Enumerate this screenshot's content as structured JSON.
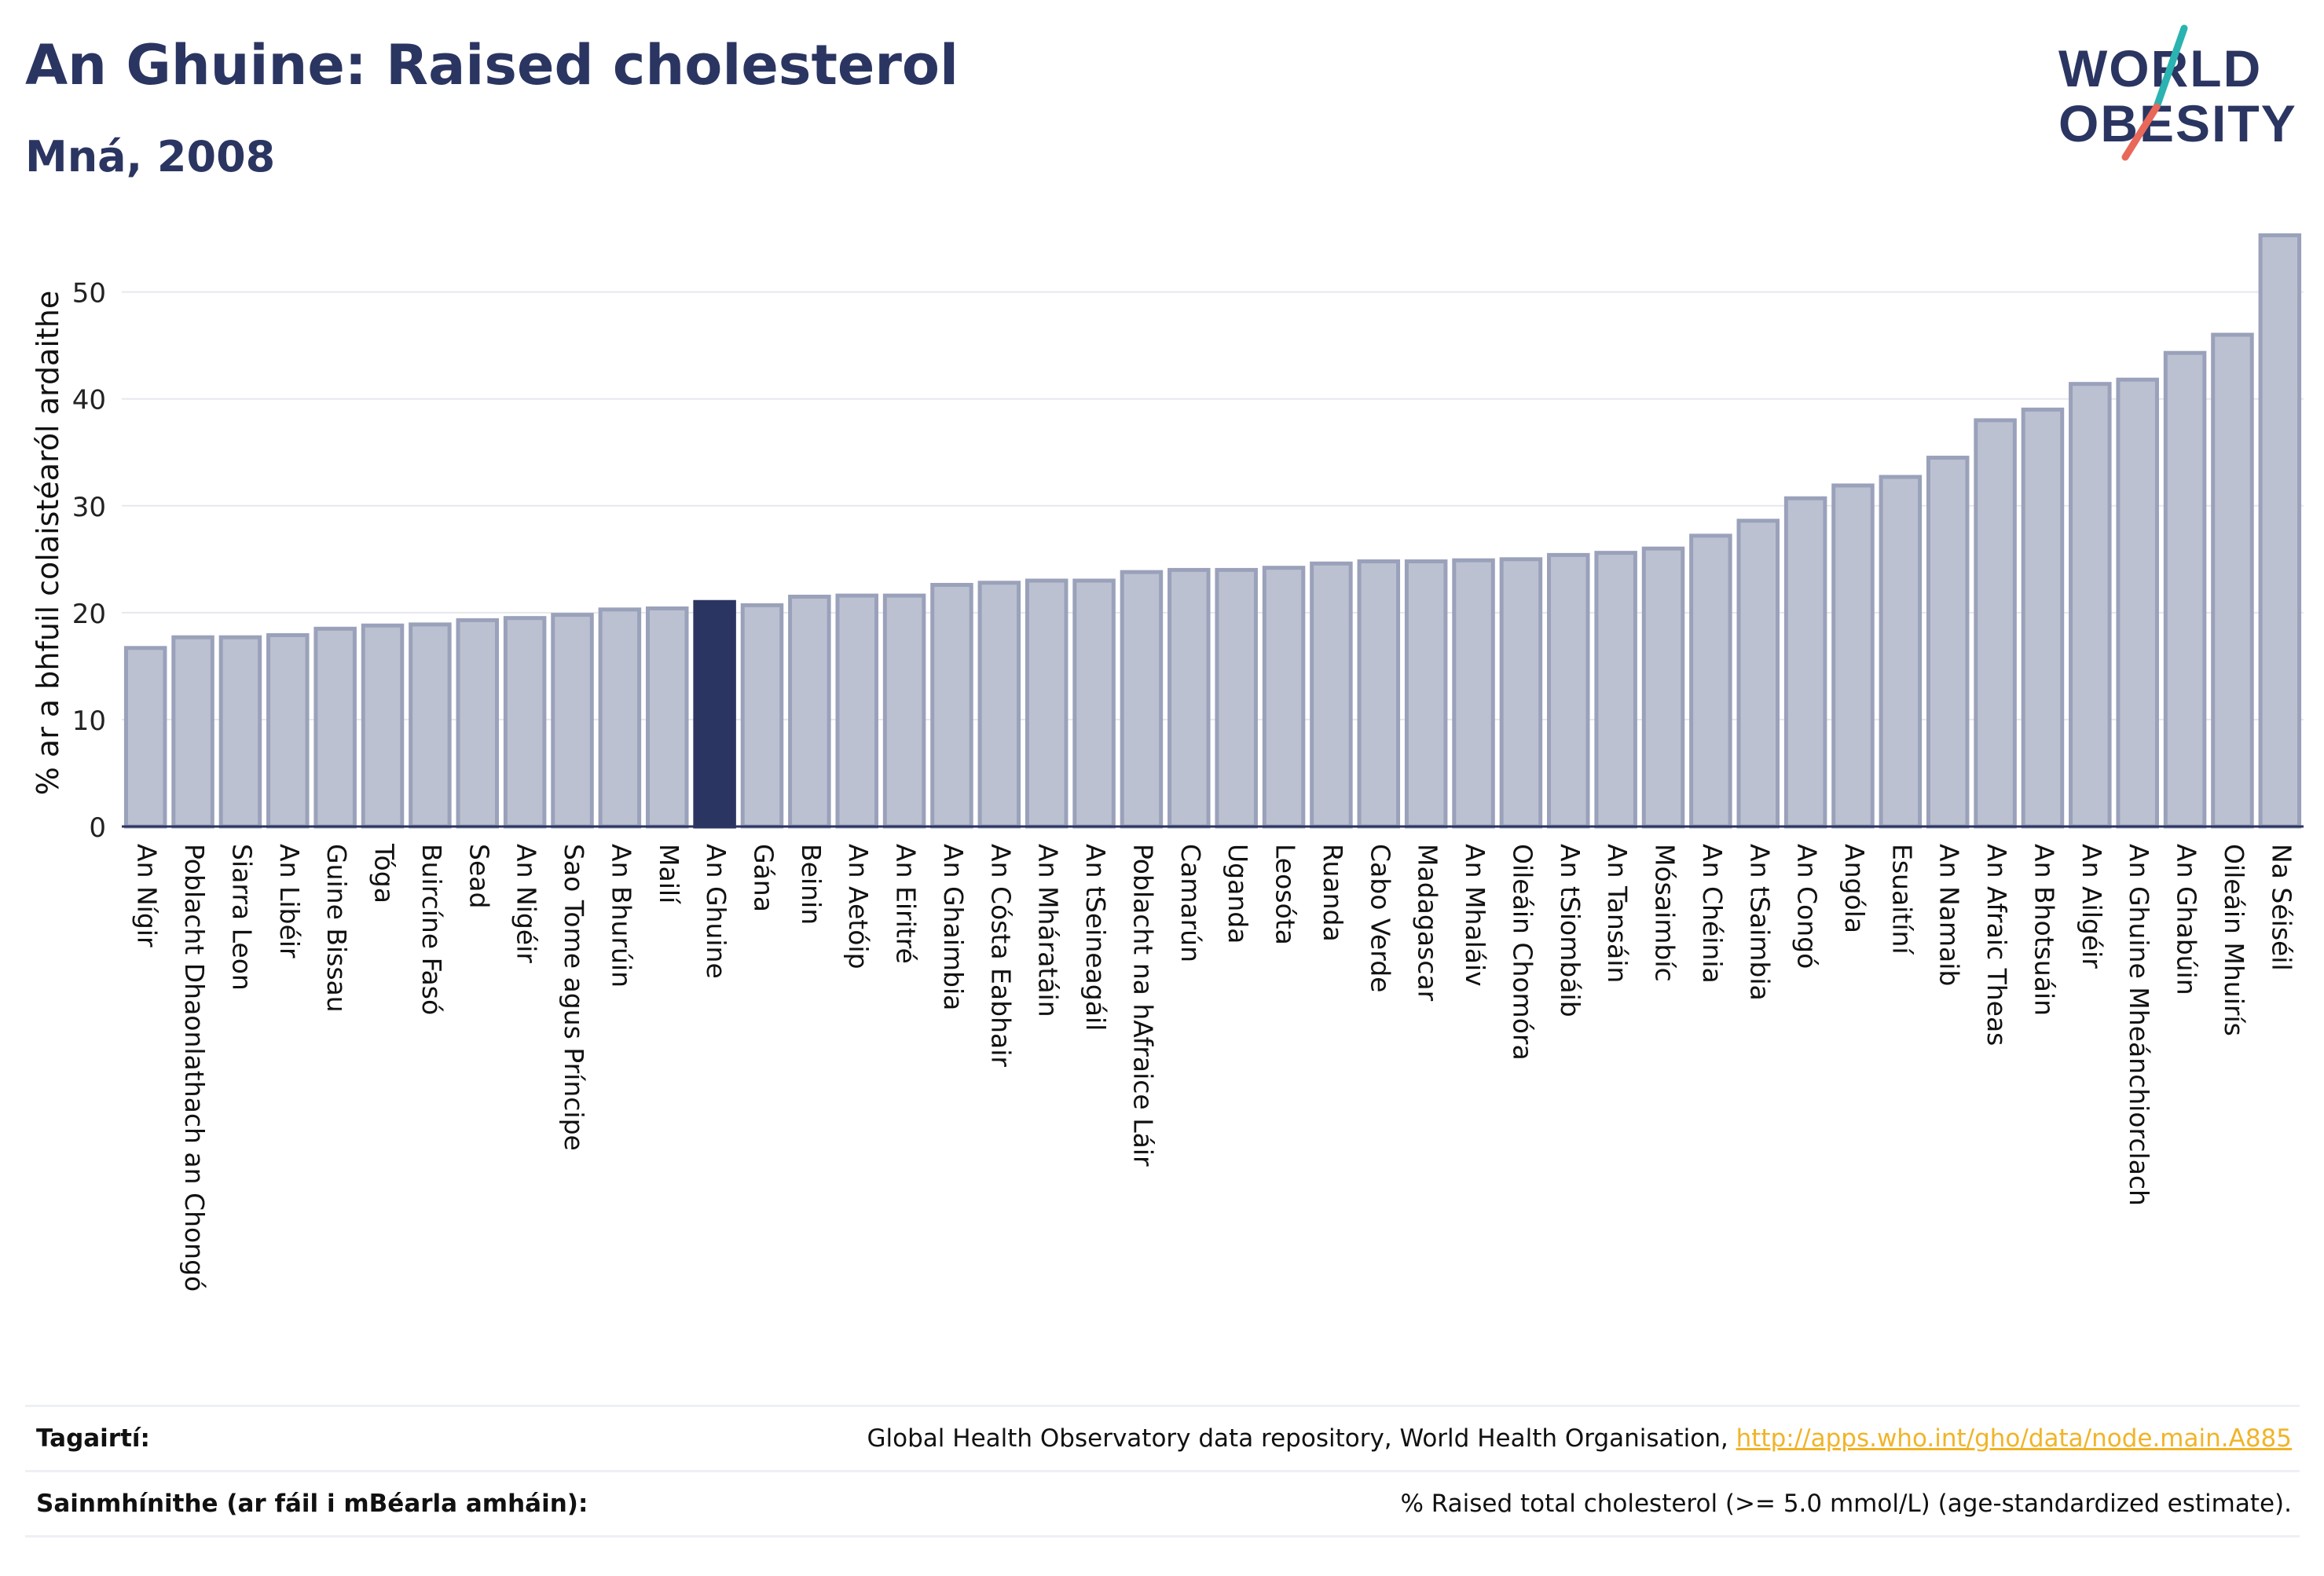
{
  "header": {
    "title": "An Ghuine: Raised cholesterol",
    "subtitle": "Mná, 2008"
  },
  "logo": {
    "line1": "WORLD",
    "line2": "OBESITY"
  },
  "chart_data": {
    "type": "bar",
    "title": "An Ghuine: Raised cholesterol",
    "subtitle": "Mná, 2008",
    "ylabel": "% ar a bhfuil colaistéaról ardaithe",
    "xlabel": "",
    "ylim": [
      0,
      56
    ],
    "yticks": [
      0,
      10,
      20,
      30,
      40,
      50
    ],
    "grid": true,
    "highlight": "An Ghuine",
    "colors": {
      "bar": "#bcc1d1",
      "bar_edge": "#9aa1ba",
      "highlight": "#2b3561",
      "axis": "#2b3561",
      "grid": "#e6e8ee"
    },
    "categories": [
      "An Nígir",
      "Poblacht Dhaonlathach an Chongó",
      "Siarra Leon",
      "An Libéir",
      "Guine Bissau",
      "Tóga",
      "Buircíne Fasó",
      "Sead",
      "An Nigéir",
      "Sao Tome agus Príncipe",
      "An Bhurúin",
      "Mailí",
      "An Ghuine",
      "Gána",
      "Beinin",
      "An Aetóip",
      "An Eiritré",
      "An Ghaimbia",
      "An Cósta Eabhair",
      "An Mháratáin",
      "An tSeineagáil",
      "Poblacht na hAfraice Láir",
      "Camarún",
      "Uganda",
      "Leosóta",
      "Ruanda",
      "Cabo Verde",
      "Madagascar",
      "An Mhaláiv",
      "Oileáin Chomóra",
      "An tSiombáib",
      "An Tansáin",
      "Mósaimbíc",
      "An Chéinia",
      "An tSaimbia",
      "An Congó",
      "Angóla",
      "Esuaitíní",
      "An Namaib",
      "An Afraic Theas",
      "An Bhotsuáin",
      "An Ailgéir",
      "An Ghuine Mheánchiorclach",
      "An Ghabúin",
      "Oileáin Mhuirís",
      "Na Séiséil"
    ],
    "values": [
      16.7,
      17.7,
      17.7,
      17.9,
      18.5,
      18.8,
      18.9,
      19.3,
      19.5,
      19.8,
      20.3,
      20.4,
      21.0,
      20.7,
      21.5,
      21.6,
      21.6,
      22.6,
      22.8,
      23.0,
      23.0,
      23.8,
      24.0,
      24.0,
      24.2,
      24.6,
      24.8,
      24.8,
      24.9,
      25.0,
      25.4,
      25.6,
      26.0,
      27.2,
      28.6,
      30.7,
      31.9,
      32.7,
      34.5,
      38.0,
      39.0,
      41.4,
      41.8,
      44.3,
      46.0,
      55.3
    ]
  },
  "references": {
    "label": "Tagairtí:",
    "text": "Global Health Observatory data repository, World Health Organisation, ",
    "link": "http://apps.who.int/gho/data/node.main.A885"
  },
  "definitions": {
    "label": "Sainmhínithe (ar fáil i mBéarla amháin):",
    "text": "% Raised total cholesterol (>= 5.0 mmol/L) (age-standardized estimate)."
  }
}
